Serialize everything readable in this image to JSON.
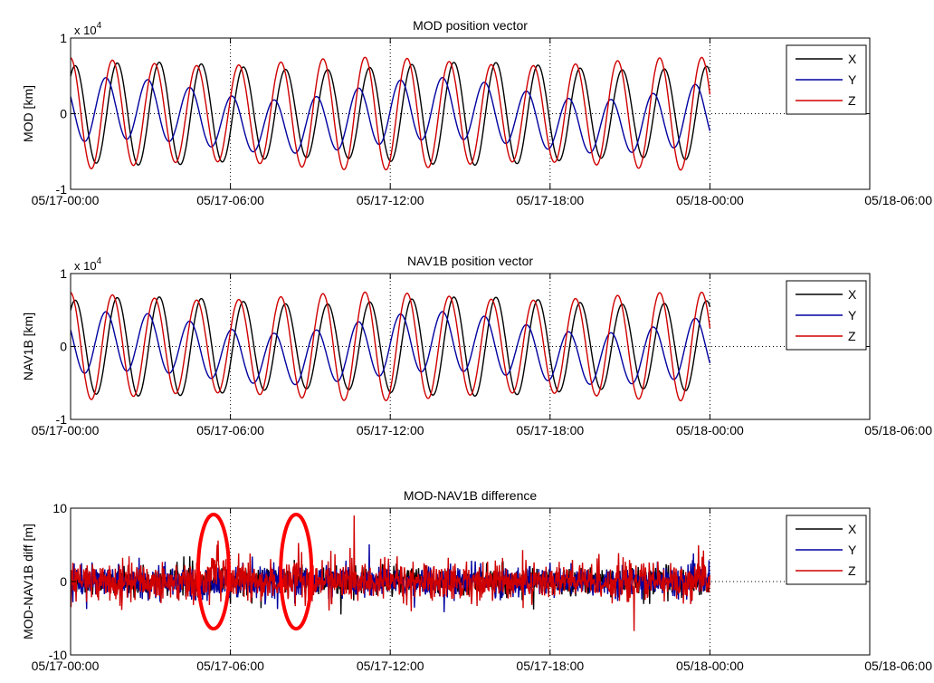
{
  "chart_data": [
    {
      "type": "line",
      "title": "MOD position vector",
      "ylabel": "MOD [km]",
      "y_exponent_prefix": "x 10",
      "y_exponent": "4",
      "x_ticks": [
        "05/17-00:00",
        "05/17-06:00",
        "05/17-12:00",
        "05/17-18:00",
        "05/18-00:00",
        "05/18-06:00"
      ],
      "y_ticks": [
        "-1",
        "0",
        "1"
      ],
      "xlim_hours": [
        0,
        30
      ],
      "ylim": [
        -10000,
        10000
      ],
      "grid": "dotted vertical lines at 6h ticks, dotted zero line",
      "legend_placement": "right",
      "series": [
        {
          "name": "X",
          "color": "#000000",
          "amplitude": 6300,
          "period_hours": 1.58,
          "phase": 0.9,
          "mean_offset": 0
        },
        {
          "name": "Y",
          "color": "#0000a0",
          "amplitude": 3800,
          "period_hours": 1.58,
          "phase": 2.6,
          "mean_offset": -500
        },
        {
          "name": "Z",
          "color": "#d00000",
          "amplitude": 6900,
          "period_hours": 1.58,
          "phase": 1.6,
          "mean_offset": 0
        }
      ],
      "data_end_hours": 24
    },
    {
      "type": "line",
      "title": "NAV1B position vector",
      "ylabel": "NAV1B [km]",
      "y_exponent_prefix": "x 10",
      "y_exponent": "4",
      "x_ticks": [
        "05/17-00:00",
        "05/17-06:00",
        "05/17-12:00",
        "05/17-18:00",
        "05/18-00:00",
        "05/18-06:00"
      ],
      "y_ticks": [
        "-1",
        "0",
        "1"
      ],
      "xlim_hours": [
        0,
        30
      ],
      "ylim": [
        -10000,
        10000
      ],
      "grid": "dotted vertical lines at 6h ticks, dotted zero line",
      "legend_placement": "right",
      "series": [
        {
          "name": "X",
          "color": "#000000",
          "amplitude": 6300,
          "period_hours": 1.58,
          "phase": 0.9,
          "mean_offset": 0
        },
        {
          "name": "Y",
          "color": "#0000a0",
          "amplitude": 3800,
          "period_hours": 1.58,
          "phase": 2.6,
          "mean_offset": -500
        },
        {
          "name": "Z",
          "color": "#d00000",
          "amplitude": 6900,
          "period_hours": 1.58,
          "phase": 1.6,
          "mean_offset": 0
        }
      ],
      "data_end_hours": 24
    },
    {
      "type": "line",
      "title": "MOD-NAV1B difference",
      "ylabel": "MOD-NAV1B diff [m]",
      "x_ticks": [
        "05/17-00:00",
        "05/17-06:00",
        "05/17-12:00",
        "05/17-18:00",
        "05/18-00:00",
        "05/18-06:00"
      ],
      "y_ticks": [
        "-10",
        "0",
        "10"
      ],
      "xlim_hours": [
        0,
        30
      ],
      "ylim": [
        -10,
        10
      ],
      "grid": "dotted vertical lines at 6h ticks, dotted zero line",
      "legend_placement": "right",
      "series": [
        {
          "name": "X",
          "color": "#000000",
          "noise_std": 0.9
        },
        {
          "name": "Y",
          "color": "#0000a0",
          "noise_std": 1.0
        },
        {
          "name": "Z",
          "color": "#d00000",
          "noise_std": 1.3
        }
      ],
      "data_end_hours": 24,
      "highlighted_spikes_hours": [
        5.4,
        8.5
      ],
      "highlight_color": "#ff0000",
      "spike_max_m": 8
    }
  ]
}
